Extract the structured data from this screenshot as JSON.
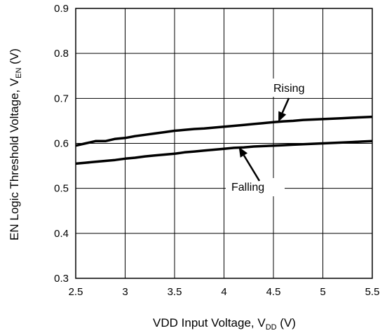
{
  "chart_data": {
    "type": "line",
    "x_axis": {
      "label_main": "VDD Input Voltage, V",
      "label_sub": "DD",
      "label_unit": " (V)",
      "range": [
        2.5,
        5.5
      ],
      "ticks": [
        "2.5",
        "3",
        "3.5",
        "4",
        "4.5",
        "5",
        "5.5"
      ],
      "tick_values": [
        2.5,
        3,
        3.5,
        4,
        4.5,
        5,
        5.5
      ]
    },
    "y_axis": {
      "label_main": "EN Logic Threshold Voltage, V",
      "label_sub": "EN",
      "label_unit": " (V)",
      "range": [
        0.3,
        0.9
      ],
      "ticks": [
        "0.3",
        "0.4",
        "0.5",
        "0.6",
        "0.7",
        "0.8",
        "0.9"
      ],
      "tick_values": [
        0.3,
        0.4,
        0.5,
        0.6,
        0.7,
        0.8,
        0.9
      ]
    },
    "grid": true,
    "series": [
      {
        "name": "Rising",
        "x": [
          2.5,
          2.6,
          2.7,
          2.8,
          2.9,
          3.0,
          3.1,
          3.2,
          3.3,
          3.4,
          3.5,
          3.6,
          3.7,
          3.8,
          3.9,
          4.0,
          4.1,
          4.2,
          4.3,
          4.4,
          4.5,
          4.6,
          4.7,
          4.8,
          4.9,
          5.0,
          5.1,
          5.2,
          5.3,
          5.4,
          5.5
        ],
        "y": [
          0.595,
          0.6,
          0.605,
          0.605,
          0.61,
          0.612,
          0.616,
          0.619,
          0.622,
          0.625,
          0.628,
          0.63,
          0.632,
          0.633,
          0.635,
          0.637,
          0.639,
          0.641,
          0.643,
          0.645,
          0.647,
          0.649,
          0.65,
          0.652,
          0.653,
          0.654,
          0.655,
          0.656,
          0.657,
          0.658,
          0.659
        ]
      },
      {
        "name": "Falling",
        "x": [
          2.5,
          2.6,
          2.7,
          2.8,
          2.9,
          3.0,
          3.1,
          3.2,
          3.3,
          3.4,
          3.5,
          3.6,
          3.7,
          3.8,
          3.9,
          4.0,
          4.1,
          4.2,
          4.3,
          4.4,
          4.5,
          4.6,
          4.7,
          4.8,
          4.9,
          5.0,
          5.1,
          5.2,
          5.3,
          5.4,
          5.5
        ],
        "y": [
          0.555,
          0.557,
          0.559,
          0.561,
          0.563,
          0.566,
          0.568,
          0.571,
          0.573,
          0.575,
          0.577,
          0.58,
          0.582,
          0.584,
          0.586,
          0.588,
          0.59,
          0.591,
          0.593,
          0.594,
          0.595,
          0.596,
          0.597,
          0.598,
          0.599,
          0.6,
          0.601,
          0.602,
          0.603,
          0.604,
          0.605
        ]
      }
    ],
    "annotations": [
      {
        "text": "Rising",
        "series": "Rising",
        "arrow_target": [
          4.55,
          0.648
        ]
      },
      {
        "text": "Falling",
        "series": "Falling",
        "arrow_target": [
          4.15,
          0.592
        ]
      }
    ]
  }
}
